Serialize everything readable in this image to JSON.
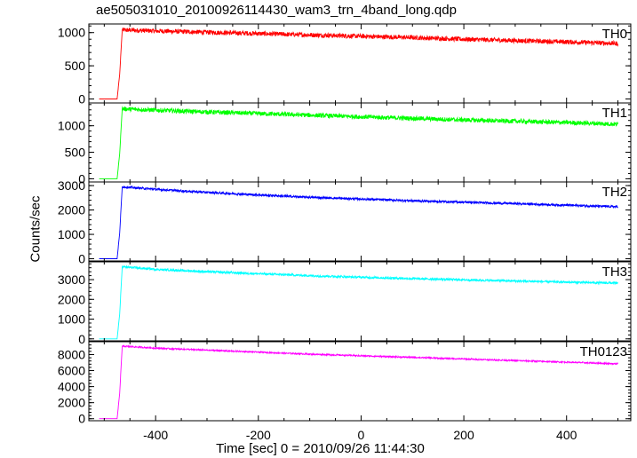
{
  "chart_data": {
    "type": "line",
    "title": "ae505031010_20100926114430_wam3_trn_4band_long.qdp",
    "xlabel": "Time [sec] 0 = 2010/09/26 11:44:30",
    "ylabel": "Counts/sec",
    "xlim": [
      -530,
      525
    ],
    "x_ticks": [
      -400,
      -200,
      0,
      200,
      400
    ],
    "grid": false,
    "panels": [
      {
        "name": "TH0",
        "color": "#ff0000",
        "ylim": [
          -60,
          1130
        ],
        "y_ticks": [
          0,
          500,
          1000
        ],
        "x": [
          -510,
          -475,
          -470,
          -465,
          -400,
          -300,
          -200,
          -100,
          0,
          100,
          200,
          300,
          400,
          500
        ],
        "y": [
          0,
          0,
          370,
          1040,
          1025,
          1005,
          985,
          965,
          945,
          925,
          900,
          880,
          860,
          835
        ],
        "noise": 35
      },
      {
        "name": "TH1",
        "color": "#00ff00",
        "ylim": [
          -60,
          1430
        ],
        "y_ticks": [
          0,
          500,
          1000
        ],
        "x": [
          -510,
          -475,
          -470,
          -465,
          -400,
          -300,
          -200,
          -100,
          0,
          100,
          200,
          300,
          400,
          500
        ],
        "y": [
          0,
          0,
          470,
          1320,
          1295,
          1260,
          1230,
          1200,
          1170,
          1140,
          1110,
          1085,
          1060,
          1030
        ],
        "noise": 42
      },
      {
        "name": "TH2",
        "color": "#0000ff",
        "ylim": [
          -90,
          3150
        ],
        "y_ticks": [
          0,
          1000,
          2000,
          3000
        ],
        "x": [
          -510,
          -475,
          -470,
          -465,
          -400,
          -300,
          -200,
          -100,
          0,
          100,
          200,
          300,
          400,
          500
        ],
        "y": [
          0,
          0,
          1050,
          2950,
          2850,
          2720,
          2620,
          2520,
          2450,
          2380,
          2320,
          2260,
          2200,
          2130
        ],
        "noise": 45
      },
      {
        "name": "TH3",
        "color": "#00ffff",
        "ylim": [
          -100,
          3900
        ],
        "y_ticks": [
          0,
          1000,
          2000,
          3000
        ],
        "x": [
          -510,
          -475,
          -470,
          -465,
          -400,
          -300,
          -200,
          -100,
          0,
          100,
          200,
          300,
          400,
          500
        ],
        "y": [
          0,
          0,
          1250,
          3650,
          3520,
          3400,
          3300,
          3200,
          3120,
          3050,
          2990,
          2930,
          2870,
          2820
        ],
        "noise": 55
      },
      {
        "name": "TH0123",
        "color": "#ff00ff",
        "ylim": [
          -250,
          9600
        ],
        "y_ticks": [
          0,
          2000,
          4000,
          6000,
          8000
        ],
        "x": [
          -510,
          -475,
          -470,
          -465,
          -400,
          -300,
          -200,
          -100,
          0,
          100,
          200,
          300,
          400,
          500
        ],
        "y": [
          0,
          0,
          3150,
          9050,
          8800,
          8550,
          8300,
          8050,
          7850,
          7650,
          7450,
          7250,
          7050,
          6850
        ],
        "noise": 85
      }
    ]
  }
}
